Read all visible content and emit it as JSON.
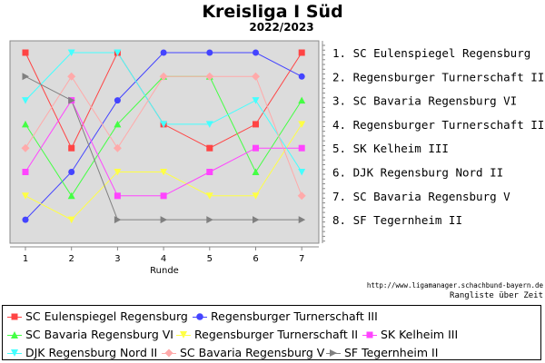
{
  "chart_data": {
    "type": "line",
    "title": "Kreisliga I Süd",
    "subtitle": "2022/2023",
    "xlabel": "Runde",
    "categories": [
      1,
      2,
      3,
      4,
      5,
      6,
      7
    ],
    "ylim": [
      1,
      8
    ],
    "y_reversed": true,
    "grid": false,
    "series": [
      {
        "name": "SC Eulenspiegel Regensburg",
        "color": "#ff4444",
        "marker": "square",
        "values": [
          1,
          5,
          1,
          4,
          5,
          4,
          1
        ]
      },
      {
        "name": "Regensburger Turnerschaft III",
        "color": "#4444ff",
        "marker": "circle",
        "values": [
          8,
          6,
          3,
          1,
          1,
          1,
          2
        ]
      },
      {
        "name": "SC Bavaria Regensburg VI",
        "color": "#44ff44",
        "marker": "triangle-up",
        "values": [
          4,
          7,
          4,
          2,
          2,
          6,
          3
        ]
      },
      {
        "name": "Regensburger Turnerschaft II",
        "color": "#ffff44",
        "marker": "triangle-down",
        "values": [
          7,
          8,
          6,
          6,
          7,
          7,
          4
        ]
      },
      {
        "name": "SK Kelheim III",
        "color": "#ff44ff",
        "marker": "square",
        "values": [
          6,
          3,
          7,
          7,
          6,
          5,
          5
        ]
      },
      {
        "name": "DJK Regensburg Nord II",
        "color": "#44ffff",
        "marker": "triangle-down",
        "values": [
          3,
          1,
          1,
          4,
          4,
          3,
          6
        ]
      },
      {
        "name": "SC Bavaria Regensburg V",
        "color": "#ffaaaa",
        "marker": "diamond",
        "values": [
          5,
          2,
          5,
          2,
          2,
          2,
          7
        ]
      },
      {
        "name": "SF Tegernheim II",
        "color": "#808080",
        "marker": "triangle-right",
        "values": [
          2,
          3,
          8,
          8,
          8,
          8,
          8
        ]
      }
    ],
    "final_ranking": [
      "1. SC Eulenspiegel Regensburg",
      "2. Regensburger Turnerschaft III",
      "3. SC Bavaria Regensburg VI",
      "4. Regensburger Turnerschaft II",
      "5. SK Kelheim III",
      "6. DJK Regensburg Nord II",
      "7. SC Bavaria Regensburg V",
      "8. SF Tegernheim II"
    ],
    "legend_position": "bottom"
  },
  "footer": {
    "source_url": "http://www.ligamanager.schachbund-bayern.de",
    "caption": "Rangliste über Zeit"
  }
}
